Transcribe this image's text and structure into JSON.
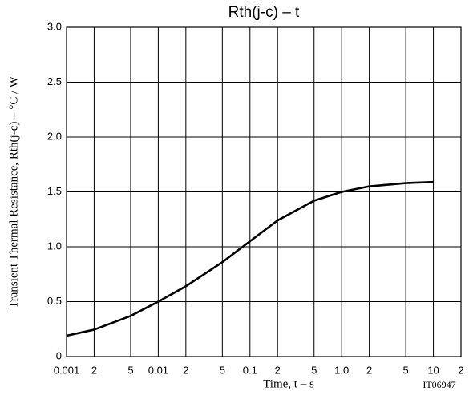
{
  "chart_data": {
    "type": "line",
    "title": "Rth(j-c)  –  t",
    "x_label": "Time, t  –  s",
    "y_label": "Transient Thermal Resistance, Rth(j-c)  –  °C / W",
    "annotation": "IT06947",
    "x": [
      0.001,
      0.002,
      0.005,
      0.01,
      0.02,
      0.05,
      0.1,
      0.2,
      0.5,
      1,
      2,
      5,
      10
    ],
    "series": [
      {
        "color": "#000000",
        "values": [
          0.19,
          0.245,
          0.37,
          0.5,
          0.64,
          0.86,
          1.05,
          1.24,
          1.42,
          1.5,
          1.55,
          1.58,
          1.59
        ]
      }
    ],
    "xlim": [
      0.001,
      20
    ],
    "x_log": true,
    "xticks": [
      0.001,
      {
        "value": 0.002,
        "label": "2"
      },
      {
        "value": 0.005,
        "label": "5"
      },
      0.01,
      {
        "value": 0.02,
        "label": "2"
      },
      {
        "value": 0.05,
        "label": "5"
      },
      0.1,
      {
        "value": 0.2,
        "label": "2"
      },
      {
        "value": 0.5,
        "label": "5"
      },
      {
        "value": 1,
        "label": "1.0"
      },
      {
        "value": 2,
        "label": "2"
      },
      {
        "value": 5,
        "label": "5"
      },
      10,
      {
        "value": 20,
        "label": "2"
      }
    ],
    "ylim": [
      0,
      3
    ],
    "yticks": [
      0,
      0.5,
      {
        "value": 1,
        "label": "1.0"
      },
      {
        "value": 1.5,
        "label": "1.5"
      },
      {
        "value": 2,
        "label": "2.0"
      },
      {
        "value": 2.5,
        "label": "2.5"
      },
      {
        "value": 3,
        "label": "3.0"
      }
    ],
    "grid": true
  }
}
